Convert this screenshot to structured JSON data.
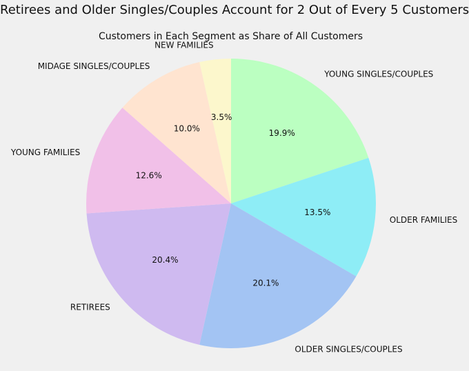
{
  "chart_data": {
    "type": "pie",
    "title": "Retirees and Older Singles/Couples Account for 2 Out of Every 5 Customers",
    "subtitle": "Customers in Each Segment as Share of All Customers",
    "start_angle_deg": 90,
    "direction": "clockwise",
    "slices": [
      {
        "label": "YOUNG SINGLES/COUPLES",
        "value": 19.9,
        "pct_label": "19.9%",
        "color": "#bbffc1"
      },
      {
        "label": "OLDER FAMILIES",
        "value": 13.5,
        "pct_label": "13.5%",
        "color": "#8eedf6"
      },
      {
        "label": "OLDER SINGLES/COUPLES",
        "value": 20.1,
        "pct_label": "20.1%",
        "color": "#a3c4f3"
      },
      {
        "label": "RETIREES",
        "value": 20.4,
        "pct_label": "20.4%",
        "color": "#cfbaf0"
      },
      {
        "label": "YOUNG FAMILIES",
        "value": 12.6,
        "pct_label": "12.6%",
        "color": "#f1c0e8"
      },
      {
        "label": "MIDAGE SINGLES/COUPLES",
        "value": 10.0,
        "pct_label": "10.0%",
        "color": "#ffe4d0"
      },
      {
        "label": "NEW FAMILIES",
        "value": 3.5,
        "pct_label": "3.5%",
        "color": "#fcf7cc"
      }
    ]
  }
}
